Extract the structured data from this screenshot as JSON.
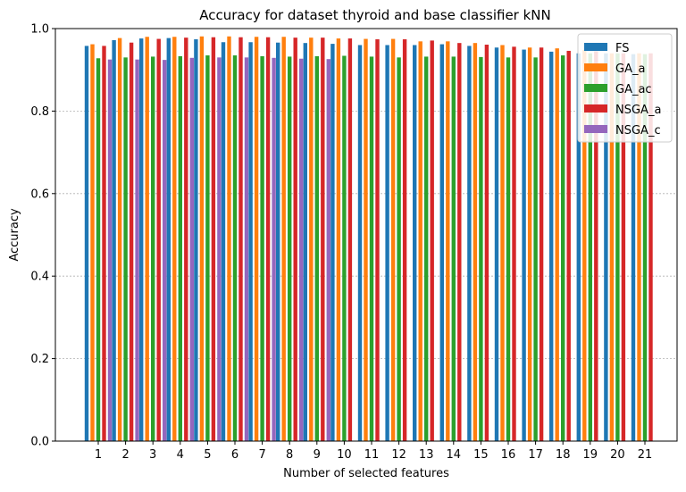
{
  "chart_data": {
    "type": "bar",
    "title": "Accuracy for dataset thyroid and base classifier kNN",
    "xlabel": "Number of selected features",
    "ylabel": "Accuracy",
    "ylim": [
      0,
      1.0
    ],
    "yticks": [
      0.0,
      0.2,
      0.4,
      0.6,
      0.8,
      1.0
    ],
    "ytick_labels": [
      "0.0",
      "0.2",
      "0.4",
      "0.6",
      "0.8",
      "1.0"
    ],
    "grid": "horizontal-dotted",
    "legend_position": "top-right",
    "categories": [
      "1",
      "2",
      "3",
      "4",
      "5",
      "6",
      "7",
      "8",
      "9",
      "10",
      "11",
      "12",
      "13",
      "14",
      "15",
      "16",
      "17",
      "18",
      "19",
      "20",
      "21"
    ],
    "series": [
      {
        "name": "FS",
        "color": "#1f77b4",
        "values": [
          0.958,
          0.972,
          0.976,
          0.977,
          0.974,
          0.967,
          0.967,
          0.966,
          0.965,
          0.963,
          0.96,
          0.96,
          0.96,
          0.962,
          0.958,
          0.954,
          0.949,
          0.944,
          0.94,
          0.94,
          0.938
        ]
      },
      {
        "name": "GA_a",
        "color": "#ff7f0e",
        "values": [
          0.962,
          0.977,
          0.98,
          0.98,
          0.981,
          0.981,
          0.98,
          0.98,
          0.978,
          0.976,
          0.975,
          0.975,
          0.969,
          0.969,
          0.965,
          0.96,
          0.954,
          0.952,
          0.948,
          0.94,
          0.94
        ]
      },
      {
        "name": "GA_ac",
        "color": "#2ca02c",
        "values": [
          0.928,
          0.93,
          0.932,
          0.933,
          0.935,
          0.935,
          0.933,
          0.932,
          0.933,
          0.934,
          0.932,
          0.93,
          0.932,
          0.932,
          0.931,
          0.93,
          0.93,
          0.935,
          0.94,
          0.94,
          0.938
        ]
      },
      {
        "name": "NSGA_a",
        "color": "#d62728",
        "values": [
          0.958,
          0.966,
          0.975,
          0.978,
          0.979,
          0.979,
          0.979,
          0.978,
          0.978,
          0.976,
          0.974,
          0.974,
          0.971,
          0.965,
          0.961,
          0.956,
          0.954,
          0.946,
          0.945,
          0.94,
          0.94
        ]
      },
      {
        "name": "NSGA_c",
        "color": "#9467bd",
        "values": [
          0.925,
          0.925,
          0.924,
          0.929,
          0.93,
          0.93,
          0.929,
          0.927,
          0.926,
          null,
          null,
          null,
          null,
          null,
          null,
          null,
          null,
          null,
          null,
          null,
          null
        ]
      }
    ]
  }
}
